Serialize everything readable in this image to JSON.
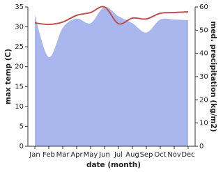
{
  "chart_data": {
    "type": "line-area",
    "x_label": "date (month)",
    "y_label": "max temp (C)",
    "y2_label": "med. precipitation (kg/m2)",
    "categories": [
      "Jan",
      "Feb",
      "Mar",
      "Apr",
      "May",
      "Jun",
      "Jul",
      "Aug",
      "Sep",
      "Oct",
      "Nov",
      "Dec"
    ],
    "series": [
      {
        "name": "med. precipitation",
        "kind": "area",
        "axis": "y2",
        "color": "#aab7ef",
        "values": [
          56.4,
          38.4,
          51,
          55,
          53,
          60,
          56,
          53,
          49,
          54.6,
          54.6,
          54.3
        ]
      },
      {
        "name": "max temp",
        "kind": "line",
        "axis": "y",
        "color": "#c0504d",
        "values": [
          31,
          30.6,
          31.2,
          32.9,
          33.6,
          35,
          30.8,
          32.2,
          32,
          33.4,
          33.6,
          33.8
        ]
      }
    ],
    "ylim": [
      0,
      35
    ],
    "yticks": [
      0,
      5,
      10,
      15,
      20,
      25,
      30,
      35
    ],
    "y2lim": [
      0,
      60
    ],
    "y2ticks": [
      0,
      10,
      20,
      30,
      40,
      50,
      60
    ]
  }
}
